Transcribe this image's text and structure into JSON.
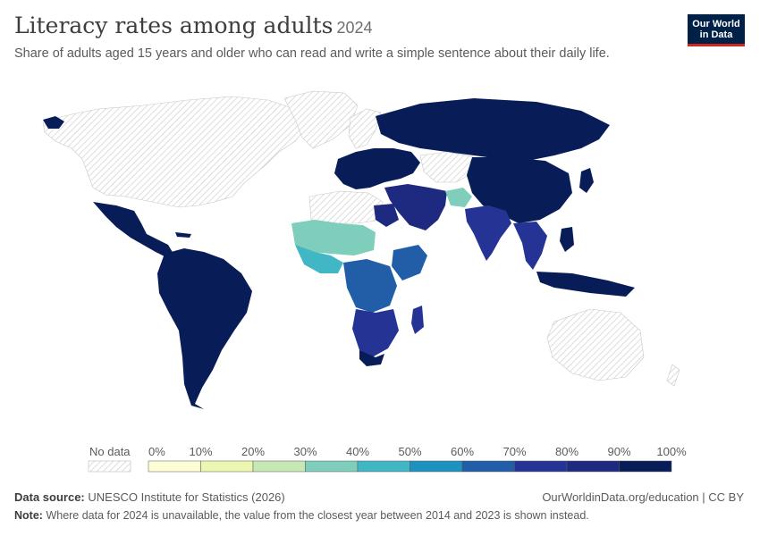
{
  "header": {
    "title": "Literacy rates among adults",
    "year": "2024",
    "subtitle": "Share of adults aged 15 years and older who can read and write a simple sentence about their daily life."
  },
  "logo": {
    "line1": "Our World",
    "line2": "in Data"
  },
  "legend": {
    "no_data_label": "No data",
    "ticks": [
      "0%",
      "10%",
      "20%",
      "30%",
      "40%",
      "50%",
      "60%",
      "70%",
      "80%",
      "90%",
      "100%"
    ],
    "colors": [
      "#fdfdd6",
      "#ebf7b1",
      "#c6e8b4",
      "#7fcdbb",
      "#41b6c4",
      "#1d91c0",
      "#225ea8",
      "#253494",
      "#1e2a80",
      "#081d58"
    ]
  },
  "footer": {
    "source_label": "Data source:",
    "source_value": "UNESCO Institute for Statistics (2026)",
    "link": "OurWorldinData.org/education | CC BY",
    "note_label": "Note:",
    "note_value": "Where data for 2024 is unavailable, the value from the closest year between 2014 and 2023 is shown instead."
  }
}
